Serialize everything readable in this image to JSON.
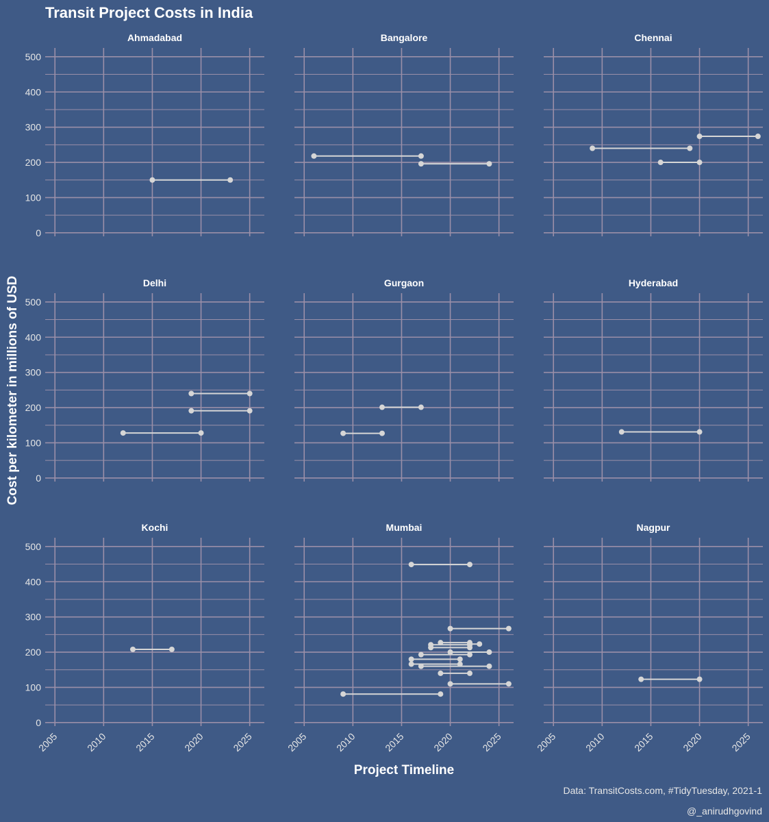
{
  "chart_data": {
    "type": "dumbbell",
    "title": "Transit Project Costs in India",
    "xlabel": "Project Timeline",
    "ylabel": "Cost per kilometer in millions of USD",
    "xlim": [
      2004,
      2026.5
    ],
    "ylim": [
      -10,
      525
    ],
    "x_ticks": [
      2005,
      2010,
      2015,
      2020,
      2025
    ],
    "y_ticks": [
      0,
      100,
      200,
      300,
      400,
      500
    ],
    "grid": true,
    "colors": {
      "background": "#3f5a86",
      "grid": "#9a8fa8",
      "segment": "#d6d6d6",
      "point": "#d6d6d6"
    },
    "caption": "Data: TransitCosts.com, #TidyTuesday, 2021-1",
    "credit": "@_anirudhgovind",
    "panels": [
      {
        "city": "Ahmadabad",
        "segments": [
          {
            "start": 2015,
            "end": 2023,
            "cost": 150
          }
        ]
      },
      {
        "city": "Bangalore",
        "segments": [
          {
            "start": 2006,
            "end": 2017,
            "cost": 218
          },
          {
            "start": 2017,
            "end": 2024,
            "cost": 196
          }
        ]
      },
      {
        "city": "Chennai",
        "segments": [
          {
            "start": 2009,
            "end": 2019,
            "cost": 240
          },
          {
            "start": 2020,
            "end": 2026,
            "cost": 274
          },
          {
            "start": 2016,
            "end": 2020,
            "cost": 200
          }
        ]
      },
      {
        "city": "Delhi",
        "segments": [
          {
            "start": 2019,
            "end": 2025,
            "cost": 240
          },
          {
            "start": 2019,
            "end": 2025,
            "cost": 191
          },
          {
            "start": 2012,
            "end": 2020,
            "cost": 128
          }
        ]
      },
      {
        "city": "Gurgaon",
        "segments": [
          {
            "start": 2013,
            "end": 2017,
            "cost": 201
          },
          {
            "start": 2009,
            "end": 2013,
            "cost": 127
          }
        ]
      },
      {
        "city": "Hyderabad",
        "segments": [
          {
            "start": 2012,
            "end": 2020,
            "cost": 131
          }
        ]
      },
      {
        "city": "Kochi",
        "segments": [
          {
            "start": 2013,
            "end": 2017,
            "cost": 208
          }
        ]
      },
      {
        "city": "Mumbai",
        "segments": [
          {
            "start": 2016,
            "end": 2022,
            "cost": 449
          },
          {
            "start": 2020,
            "end": 2026,
            "cost": 267
          },
          {
            "start": 2019,
            "end": 2022,
            "cost": 227
          },
          {
            "start": 2022,
            "end": 2023,
            "cost": 223
          },
          {
            "start": 2018,
            "end": 2022,
            "cost": 221
          },
          {
            "start": 2018,
            "end": 2022,
            "cost": 213
          },
          {
            "start": 2020,
            "end": 2024,
            "cost": 200
          },
          {
            "start": 2017,
            "end": 2022,
            "cost": 193
          },
          {
            "start": 2016,
            "end": 2021,
            "cost": 180
          },
          {
            "start": 2016,
            "end": 2021,
            "cost": 166
          },
          {
            "start": 2017,
            "end": 2024,
            "cost": 160
          },
          {
            "start": 2019,
            "end": 2022,
            "cost": 140
          },
          {
            "start": 2020,
            "end": 2026,
            "cost": 110
          },
          {
            "start": 2009,
            "end": 2019,
            "cost": 81
          }
        ]
      },
      {
        "city": "Nagpur",
        "segments": [
          {
            "start": 2014,
            "end": 2020,
            "cost": 123
          }
        ]
      }
    ]
  }
}
